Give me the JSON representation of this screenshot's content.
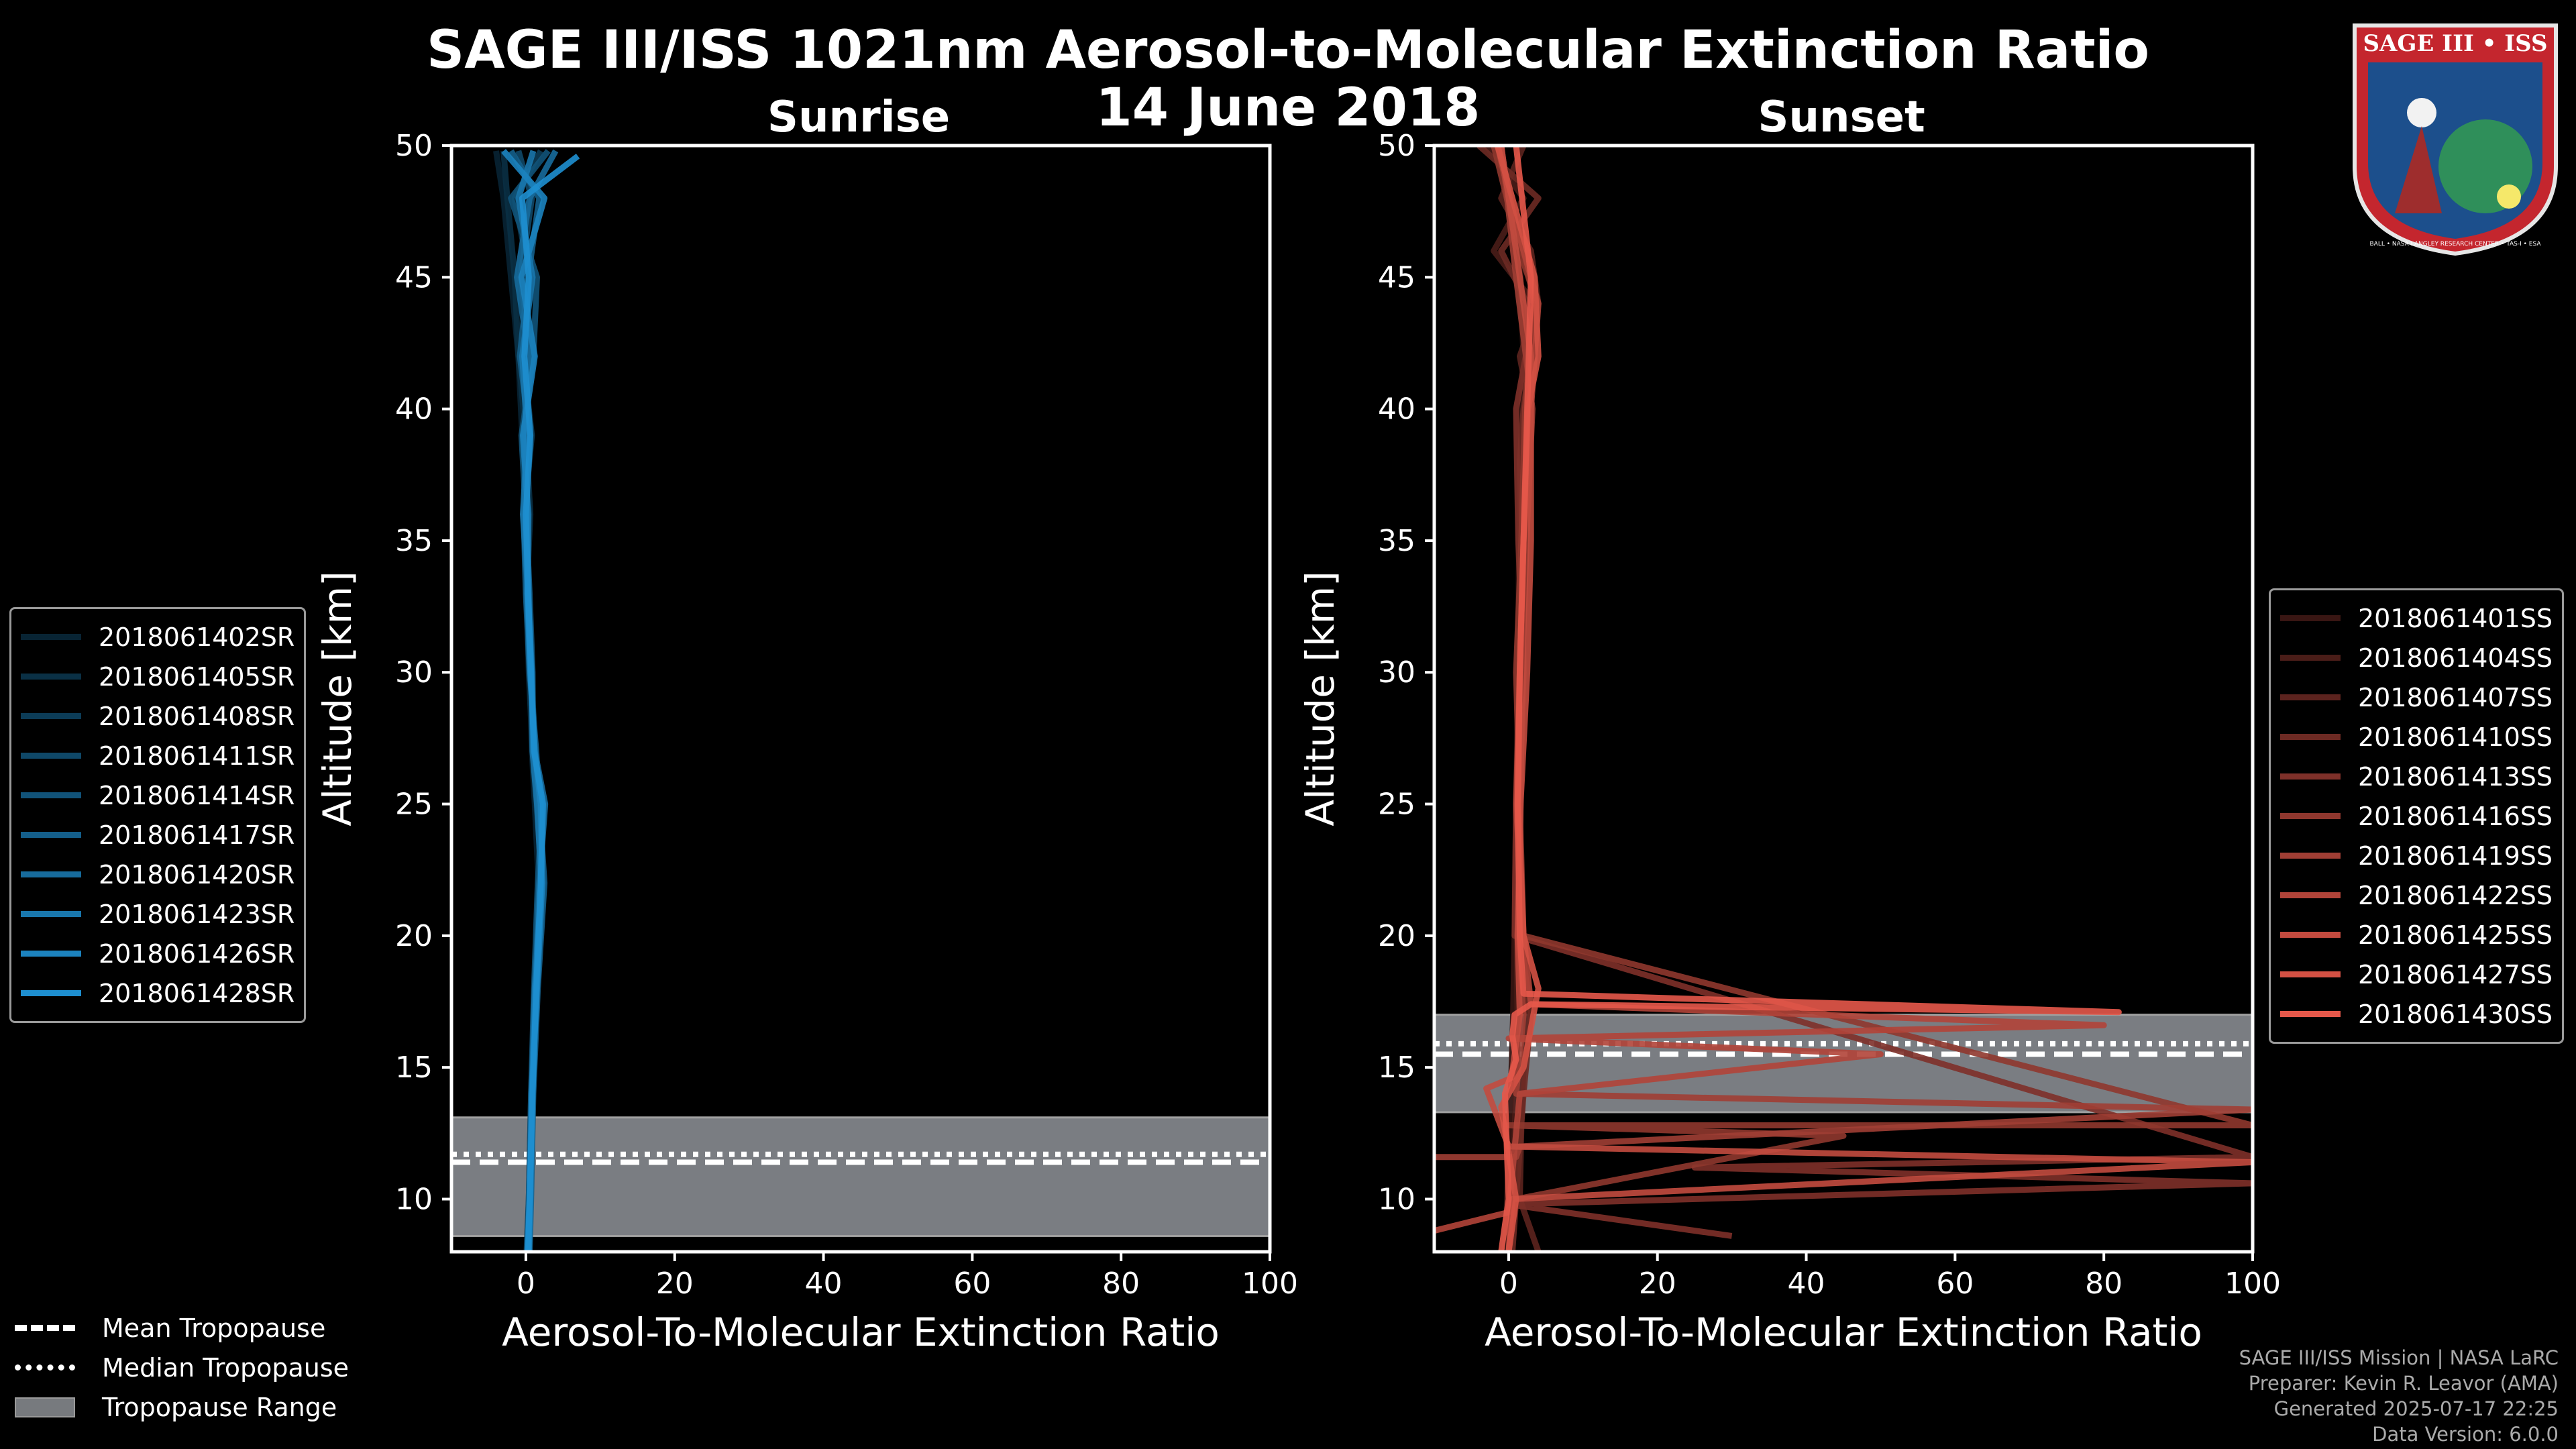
{
  "title_line1": "SAGE III/ISS 1021nm Aerosol-to-Molecular Extinction Ratio",
  "title_line2": "14 June 2018",
  "logo": {
    "text": "SAGE III • ISS",
    "subtext": "BALL • NASA LANGLEY RESEARCH CENTER • TAS-I • ESA"
  },
  "colors": {
    "sunrise": "#1e8fd0",
    "sunset": "#e5584a",
    "tropopause_range": "#7a7d82"
  },
  "credits": {
    "line1": "SAGE III/ISS Mission | NASA LaRC",
    "line2": "Preparer: Kevin R. Leavor (AMA)",
    "line3": "Generated 2025-07-17 22:25",
    "line4": "Data Version: 6.0.0"
  },
  "tropopause_legend": {
    "mean": "Mean Tropopause",
    "median": "Median Tropopause",
    "range": "Tropopause Range"
  },
  "chart_data": [
    {
      "type": "line",
      "title": "Sunrise",
      "xlabel": "Aerosol-To-Molecular Extinction Ratio",
      "ylabel": "Altitude [km]",
      "xlim": [
        -10,
        100
      ],
      "ylim": [
        8,
        50
      ],
      "xticks": [
        0,
        20,
        40,
        60,
        80,
        100
      ],
      "yticks": [
        10,
        15,
        20,
        25,
        30,
        35,
        40,
        45,
        50
      ],
      "tropopause": {
        "mean": 11.4,
        "median": 11.7,
        "range": [
          8.6,
          13.1
        ]
      },
      "series": [
        {
          "name": "2018061402SR",
          "x": [
            0.2,
            0.5,
            0.8,
            1.3,
            1.7,
            1.2,
            0.8,
            0.5,
            0.2,
            0,
            -0.5,
            -1,
            -2,
            -3,
            -4
          ],
          "y": [
            8,
            10,
            14,
            18,
            22,
            25,
            27,
            30,
            33,
            36,
            39,
            42,
            45,
            48,
            49.8
          ]
        },
        {
          "name": "2018061405SR",
          "x": [
            0.4,
            0.6,
            0.9,
            1.5,
            2.3,
            1.4,
            0.9,
            0.4,
            0.1,
            0.6,
            0,
            -1,
            -1.5,
            -2.5,
            -3
          ],
          "y": [
            8,
            10,
            14,
            18,
            22,
            25,
            27,
            30,
            33,
            36,
            39,
            42,
            45,
            48,
            49.8
          ]
        },
        {
          "name": "2018061408SR",
          "x": [
            0.1,
            0.4,
            0.7,
            1.2,
            1.9,
            2.4,
            1.1,
            0.6,
            0.3,
            -0.2,
            0.8,
            -0.4,
            0.5,
            -1.5,
            2
          ],
          "y": [
            8,
            10,
            14,
            18,
            22,
            25,
            27,
            30,
            33,
            36,
            39,
            42,
            45,
            48,
            49.8
          ]
        },
        {
          "name": "2018061411SR",
          "x": [
            0.3,
            0.5,
            0.8,
            1.4,
            2.0,
            1.6,
            1.3,
            0.7,
            0.2,
            0.4,
            -0.3,
            0.7,
            -0.7,
            0.8,
            -1
          ],
          "y": [
            8,
            10,
            14,
            18,
            22,
            25,
            27,
            30,
            33,
            36,
            39,
            42,
            45,
            48,
            49.8
          ]
        },
        {
          "name": "2018061414SR",
          "x": [
            0.2,
            0.4,
            0.7,
            1.1,
            1.6,
            2.2,
            1.0,
            0.9,
            0.5,
            0,
            -0.6,
            1,
            1.5,
            -2,
            3
          ],
          "y": [
            8,
            10,
            14,
            18,
            22,
            25,
            27,
            30,
            33,
            36,
            39,
            42,
            45,
            48,
            49.8
          ]
        },
        {
          "name": "2018061417SR",
          "x": [
            0.5,
            0.7,
            1.0,
            1.6,
            2.5,
            1.8,
            1.4,
            0.5,
            0,
            -0.3,
            0.5,
            -0.8,
            0.3,
            1.8,
            -2
          ],
          "y": [
            8,
            10,
            14,
            18,
            22,
            25,
            27,
            30,
            33,
            36,
            39,
            42,
            45,
            48,
            49.8
          ]
        },
        {
          "name": "2018061420SR",
          "x": [
            0.3,
            0.6,
            0.9,
            1.3,
            1.8,
            2.6,
            1.2,
            0.6,
            0.4,
            0.2,
            -0.2,
            0.4,
            -1.2,
            0.5,
            4
          ],
          "y": [
            8,
            10,
            14,
            18,
            22,
            25,
            27,
            30,
            33,
            36,
            39,
            42,
            45,
            48,
            49.8
          ]
        },
        {
          "name": "2018061423SR",
          "x": [
            0.2,
            0.5,
            0.8,
            1.2,
            2.1,
            1.5,
            0.9,
            0.8,
            0.3,
            -0.4,
            0.2,
            -0.5,
            0.9,
            -1,
            1
          ],
          "y": [
            8,
            10,
            14,
            18,
            22,
            25,
            27,
            30,
            33,
            36,
            39,
            42,
            45,
            48,
            49.8
          ]
        },
        {
          "name": "2018061426SR",
          "x": [
            0.4,
            0.6,
            0.8,
            1.5,
            2.2,
            2.0,
            1.2,
            0.6,
            0.2,
            0.3,
            -0.4,
            1.2,
            -0.6,
            2.5,
            -3
          ],
          "y": [
            8,
            10,
            14,
            18,
            22,
            25,
            27,
            30,
            33,
            36,
            39,
            42,
            45,
            48,
            49.8
          ]
        },
        {
          "name": "2018061428SR",
          "x": [
            0.3,
            0.5,
            0.9,
            1.4,
            2.0,
            2.3,
            1.1,
            0.7,
            0.3,
            0,
            0.6,
            -0.2,
            0.4,
            -0.5,
            7
          ],
          "y": [
            8,
            10,
            14,
            18,
            22,
            25,
            27,
            30,
            33,
            36,
            39,
            42,
            45,
            48,
            49.6
          ]
        }
      ]
    },
    {
      "type": "line",
      "title": "Sunset",
      "xlabel": "Aerosol-To-Molecular Extinction Ratio",
      "ylabel": "Altitude [km]",
      "xlim": [
        -10,
        100
      ],
      "ylim": [
        8,
        50
      ],
      "xticks": [
        0,
        20,
        40,
        60,
        80,
        100
      ],
      "yticks": [
        10,
        15,
        20,
        25,
        30,
        35,
        40,
        45,
        50
      ],
      "tropopause": {
        "mean": 15.5,
        "median": 15.9,
        "range": [
          13.3,
          17.0
        ]
      },
      "series": [
        {
          "name": "2018061401SS",
          "x": [
            -0.5,
            -0.2,
            0.3,
            0.6,
            0.8,
            1,
            1.3,
            1.4,
            1.6,
            1.8,
            2,
            1.7,
            1.5,
            0.5,
            -2
          ],
          "y": [
            8,
            10,
            14,
            17,
            20,
            25,
            30,
            35,
            38,
            40,
            42,
            44,
            46,
            48,
            50
          ]
        },
        {
          "name": "2018061404SS",
          "x": [
            0,
            0.5,
            1,
            1.2,
            1.1,
            1.3,
            1.5,
            1.8,
            2.2,
            2.6,
            2.5,
            3.5,
            -2,
            2,
            -3
          ],
          "y": [
            8,
            10,
            14,
            17,
            20,
            25,
            30,
            35,
            38,
            40,
            42,
            44,
            46,
            48,
            50
          ]
        },
        {
          "name": "2018061407SS",
          "x": [
            4,
            1.5,
            1.8,
            2.5,
            1.5,
            1.6,
            1.8,
            2,
            1.6,
            2.8,
            1.5,
            4,
            3,
            -1,
            2
          ],
          "y": [
            8,
            10,
            14,
            17,
            20,
            25,
            30,
            35,
            38,
            40,
            42,
            44,
            46,
            48,
            50
          ]
        },
        {
          "name": "2018061410SS",
          "x": [
            0.5,
            1,
            2,
            3,
            1.5,
            1.5,
            2,
            1.8,
            1.5,
            2,
            3,
            2.5,
            -1,
            4,
            -4
          ],
          "y": [
            8,
            10,
            14,
            17,
            20,
            25,
            30,
            35,
            38,
            40,
            42,
            44,
            46,
            48,
            50
          ]
        },
        {
          "name": "2018061413SS",
          "x": [
            30,
            0,
            100,
            25,
            100,
            0.8,
            1,
            2,
            1.3,
            1,
            2.3,
            3.5,
            2,
            0,
            -1
          ],
          "y": [
            8.6,
            9.8,
            10.6,
            11.2,
            11.6,
            20,
            25,
            30,
            35,
            40,
            42,
            44,
            46,
            48,
            50
          ]
        },
        {
          "name": "2018061416SS",
          "x": [
            0,
            1,
            45,
            0,
            100,
            2,
            1.5,
            1,
            1.7,
            2,
            2.2,
            2.8,
            3.8,
            1.5,
            -2
          ],
          "y": [
            8,
            10,
            12.4,
            12.8,
            12.8,
            20,
            25,
            30,
            35,
            38,
            40,
            42,
            44,
            46,
            50
          ]
        },
        {
          "name": "2018061419SS",
          "x": [
            -10,
            1,
            1.5,
            100,
            1,
            2,
            1.3,
            1.6,
            1.8,
            2.4,
            3.2,
            1,
            -1
          ],
          "y": [
            11.6,
            11.6,
            12,
            13.4,
            14,
            17,
            20,
            25,
            30,
            35,
            40,
            45,
            50
          ]
        },
        {
          "name": "2018061422SS",
          "x": [
            -10,
            0,
            1.5,
            50,
            0,
            80,
            3,
            2,
            1,
            1.5,
            2,
            3,
            4,
            1,
            -1.5
          ],
          "y": [
            8.8,
            9.5,
            14,
            15.5,
            16.1,
            16.6,
            17.4,
            20,
            25,
            30,
            35,
            40,
            44,
            47,
            50
          ]
        },
        {
          "name": "2018061425SS",
          "x": [
            0,
            0.5,
            100,
            0,
            -3,
            0.4,
            1.5,
            1.2,
            1.6,
            2.5,
            3,
            3,
            -1
          ],
          "y": [
            8,
            10,
            11.4,
            12,
            14.2,
            14.6,
            17,
            20,
            25,
            30,
            35,
            42,
            50
          ]
        },
        {
          "name": "2018061427SS",
          "x": [
            0,
            1,
            -1,
            2,
            4,
            2,
            1.3,
            1.5,
            2,
            2.6,
            4,
            3.5,
            -1.5
          ],
          "y": [
            8,
            10,
            13.5,
            15,
            18,
            20,
            25,
            30,
            35,
            40,
            42,
            45,
            50
          ]
        },
        {
          "name": "2018061430SS",
          "x": [
            -1,
            0,
            -0.5,
            1,
            0.5,
            0.8,
            3,
            82,
            2,
            1.5,
            1.2,
            1.5,
            2,
            3,
            1
          ],
          "y": [
            8,
            10,
            14,
            15.3,
            16.2,
            17,
            17.4,
            17.1,
            17.8,
            20,
            25,
            30,
            35,
            45,
            50
          ]
        }
      ]
    }
  ]
}
